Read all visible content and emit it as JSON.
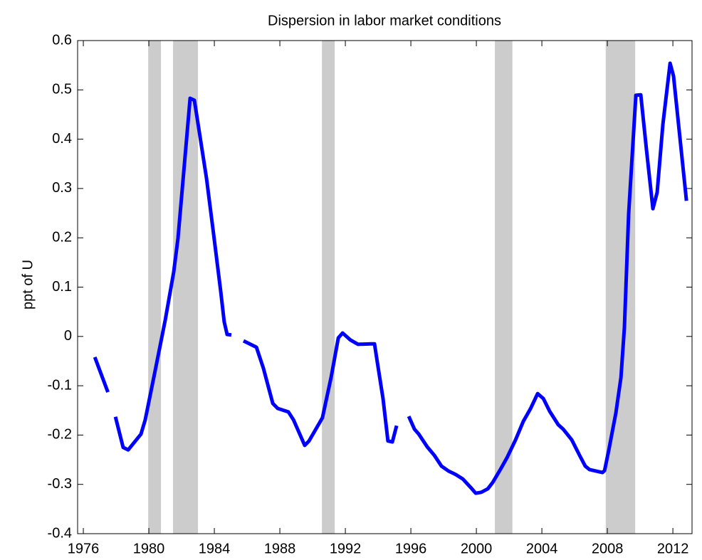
{
  "chart_data": {
    "type": "line",
    "title": "Dispersion in labor market conditions",
    "ylabel": "ppt of U",
    "xlim": [
      1975.65,
      2013.17
    ],
    "ylim": [
      -0.4,
      0.6
    ],
    "xticks": [
      1976,
      1980,
      1984,
      1988,
      1992,
      1996,
      2000,
      2004,
      2008,
      2012
    ],
    "yticks": [
      -0.4,
      -0.3,
      -0.2,
      -0.1,
      0,
      0.1,
      0.2,
      0.3,
      0.4,
      0.5,
      0.6
    ],
    "shading_color": "#cccccc",
    "shading": [
      [
        1979.96,
        1980.74
      ],
      [
        1981.48,
        1983.0
      ],
      [
        1990.57,
        1991.35
      ],
      [
        2001.13,
        2002.2
      ],
      [
        2007.9,
        2009.7
      ]
    ],
    "series": [
      {
        "color": "#0000ff",
        "x": [
          1976.7,
          1977.5,
          null,
          1977.96,
          1978.43,
          1978.74,
          1979.52,
          1979.78,
          1980.4,
          1981.0,
          1981.52,
          1981.78,
          1982.52,
          1982.78,
          1983.52,
          1983.96,
          1984.39,
          1984.6,
          1984.78,
          1985.04,
          null,
          1985.78,
          1986.57,
          1987.0,
          1987.57,
          1987.87,
          1988.52,
          1988.83,
          1989.52,
          1989.78,
          1990.6,
          1991.13,
          1991.57,
          1991.83,
          1992.3,
          1992.78,
          1993.57,
          1993.78,
          1993.96,
          1994.3,
          1994.6,
          1994.87,
          1995.13,
          null,
          1995.87,
          1996.22,
          1996.48,
          1997.0,
          1997.43,
          1997.87,
          1998.3,
          1998.74,
          1999.17,
          1999.7,
          1999.96,
          2000.3,
          2000.7,
          2001.0,
          2001.48,
          2001.87,
          2002.39,
          2002.87,
          2003.3,
          2003.74,
          2004.09,
          2004.48,
          2005.0,
          2005.3,
          2005.83,
          2006.3,
          2006.65,
          2006.91,
          2007.7,
          2007.83,
          2008.09,
          2008.52,
          2008.83,
          2009.04,
          2009.3,
          2009.74,
          2010.04,
          2010.39,
          2010.78,
          2011.04,
          2011.39,
          2011.83,
          2012.04,
          2012.83
        ],
        "values": [
          -0.042,
          -0.113,
          null,
          -0.163,
          -0.225,
          -0.23,
          -0.198,
          -0.169,
          -0.067,
          0.033,
          0.131,
          0.199,
          0.483,
          0.479,
          0.321,
          0.206,
          0.091,
          0.03,
          0.004,
          0.003,
          null,
          -0.009,
          -0.022,
          -0.065,
          -0.136,
          -0.146,
          -0.153,
          -0.169,
          -0.221,
          -0.212,
          -0.165,
          -0.083,
          -0.003,
          0.007,
          -0.007,
          -0.016,
          -0.015,
          -0.015,
          -0.054,
          -0.126,
          -0.212,
          -0.214,
          -0.181,
          null,
          -0.162,
          -0.188,
          -0.198,
          -0.224,
          -0.241,
          -0.263,
          -0.273,
          -0.28,
          -0.289,
          -0.308,
          -0.318,
          -0.316,
          -0.309,
          -0.296,
          -0.269,
          -0.246,
          -0.21,
          -0.172,
          -0.147,
          -0.116,
          -0.126,
          -0.152,
          -0.179,
          -0.188,
          -0.21,
          -0.241,
          -0.263,
          -0.27,
          -0.276,
          -0.272,
          -0.23,
          -0.155,
          -0.083,
          0.018,
          0.249,
          0.489,
          0.49,
          0.378,
          0.259,
          0.292,
          0.43,
          0.554,
          0.528,
          0.275
        ]
      }
    ]
  }
}
